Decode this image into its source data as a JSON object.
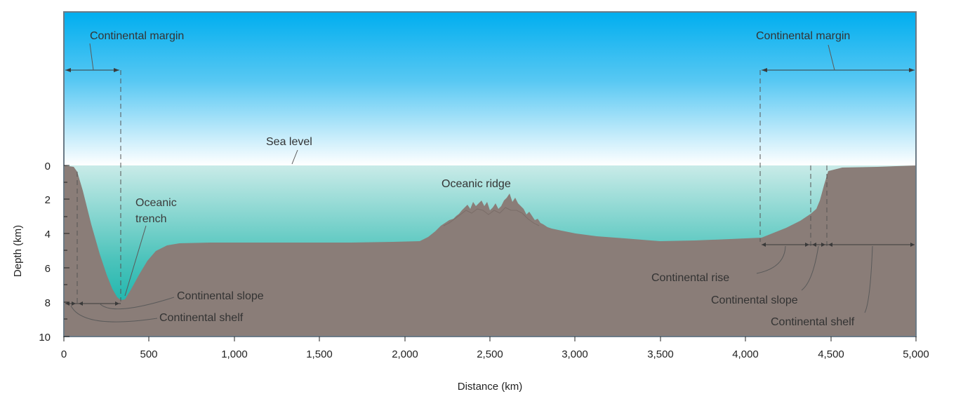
{
  "figure": {
    "labels": {
      "margin_left": "Continental margin",
      "margin_right": "Continental margin",
      "sea_level": "Sea level",
      "oceanic_ridge": "Oceanic ridge",
      "trench_line1": "Oceanic",
      "trench_line2": "trench",
      "slope_left": "Continental slope",
      "shelf_left": "Continental shelf",
      "rise_right": "Continental rise",
      "slope_right": "Continental slope",
      "shelf_right": "Continental shelf"
    },
    "x_axis": {
      "title": "Distance (km)",
      "ticks": [
        "0",
        "500",
        "1,000",
        "1,500",
        "2,000",
        "2,500",
        "3,000",
        "3,500",
        "4,000",
        "4,500",
        "5,000"
      ]
    },
    "y_axis": {
      "title": "Depth (km)",
      "ticks": [
        "0",
        "2",
        "4",
        "6",
        "8",
        "10"
      ]
    },
    "colors": {
      "sky_top": "#00aeef",
      "sky_bottom": "#ffffff",
      "water_top": "#bfe6e3",
      "water_bottom": "#00b2a9",
      "seafloor": "#8a7d78",
      "frame": "#6b7a86"
    }
  }
}
